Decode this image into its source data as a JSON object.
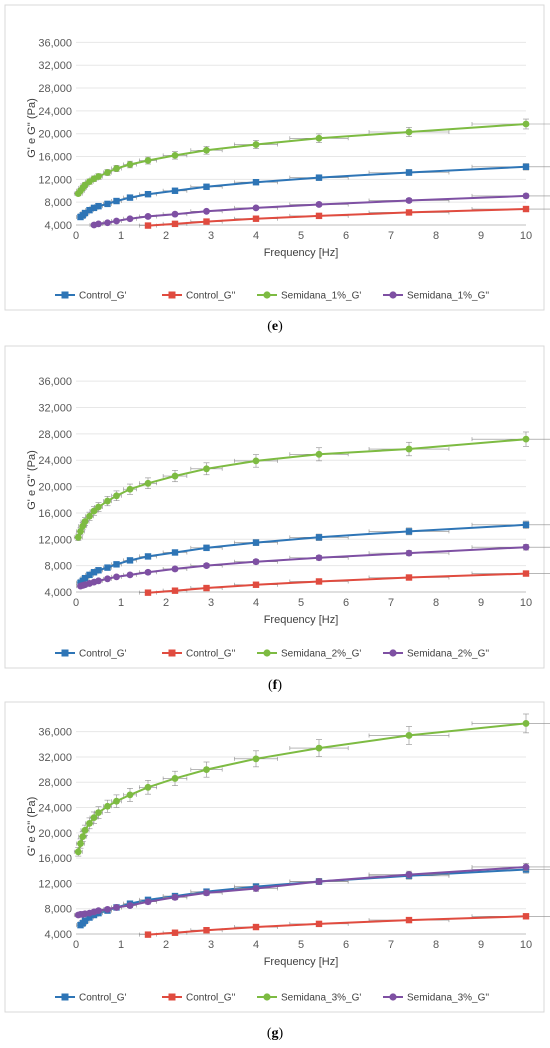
{
  "panels": [
    {
      "label": "(e)",
      "chart_data": {
        "type": "line",
        "xlabel": "Frequency [Hz]",
        "ylabel": "G' e G'' (Pa)",
        "xlim": [
          0,
          10
        ],
        "ylim": [
          4000,
          38000
        ],
        "x_ticks": [
          "0",
          "1",
          "2",
          "3",
          "4",
          "5",
          "6",
          "7",
          "8",
          "9",
          "10"
        ],
        "y_ticks": [
          "4,000",
          "8,000",
          "12,000",
          "16,000",
          "20,000",
          "24,000",
          "28,000",
          "32,000",
          "36,000"
        ],
        "legend_position": "bottom",
        "series": [
          {
            "name": "Control_G'",
            "color": "#2e75b6",
            "marker": "square",
            "x": [
              0.1,
              0.15,
              0.2,
              0.3,
              0.4,
              0.5,
              0.7,
              0.9,
              1.2,
              1.6,
              2.2,
              2.9,
              4,
              5.4,
              7.4,
              10
            ],
            "y": [
              5400,
              5700,
              6100,
              6600,
              7000,
              7300,
              7700,
              8200,
              8800,
              9400,
              10000,
              10700,
              11500,
              12300,
              13200,
              14200
            ]
          },
          {
            "name": "Control_G''",
            "color": "#e04b3f",
            "marker": "square",
            "x": [
              1.6,
              2.2,
              2.9,
              4,
              5.4,
              7.4,
              10
            ],
            "y": [
              3900,
              4200,
              4600,
              5100,
              5600,
              6200,
              6800
            ]
          },
          {
            "name": "Semidana_1%_G'",
            "color": "#7dbb42",
            "marker": "circle",
            "x": [
              0.05,
              0.1,
              0.15,
              0.2,
              0.3,
              0.4,
              0.5,
              0.7,
              0.9,
              1.2,
              1.6,
              2.2,
              2.9,
              4,
              5.4,
              7.4,
              10
            ],
            "y": [
              9500,
              10000,
              10500,
              11000,
              11600,
              12100,
              12500,
              13200,
              13900,
              14600,
              15300,
              16200,
              17100,
              18100,
              19200,
              20300,
              21700
            ]
          },
          {
            "name": "Semidana_1%_G''",
            "color": "#7e50a3",
            "marker": "circle",
            "x": [
              0.4,
              0.5,
              0.7,
              0.9,
              1.2,
              1.6,
              2.2,
              2.9,
              4,
              5.4,
              7.4,
              10
            ],
            "y": [
              4000,
              4200,
              4400,
              4700,
              5100,
              5500,
              5900,
              6400,
              7000,
              7600,
              8300,
              9100
            ]
          }
        ]
      }
    },
    {
      "label": "(f)",
      "chart_data": {
        "type": "line",
        "xlabel": "Frequency [Hz]",
        "ylabel": "G' e G'' (Pa)",
        "xlim": [
          0,
          10
        ],
        "ylim": [
          4000,
          38000
        ],
        "x_ticks": [
          "0",
          "1",
          "2",
          "3",
          "4",
          "5",
          "6",
          "7",
          "8",
          "9",
          "10"
        ],
        "y_ticks": [
          "4,000",
          "8,000",
          "12,000",
          "16,000",
          "20,000",
          "24,000",
          "28,000",
          "32,000",
          "36,000"
        ],
        "legend_position": "bottom",
        "series": [
          {
            "name": "Control_G'",
            "color": "#2e75b6",
            "marker": "square",
            "x": [
              0.1,
              0.15,
              0.2,
              0.3,
              0.4,
              0.5,
              0.7,
              0.9,
              1.2,
              1.6,
              2.2,
              2.9,
              4,
              5.4,
              7.4,
              10
            ],
            "y": [
              5400,
              5700,
              6100,
              6600,
              7000,
              7300,
              7700,
              8200,
              8800,
              9400,
              10000,
              10700,
              11500,
              12300,
              13200,
              14200
            ]
          },
          {
            "name": "Control_G''",
            "color": "#e04b3f",
            "marker": "square",
            "x": [
              1.6,
              2.2,
              2.9,
              4,
              5.4,
              7.4,
              10
            ],
            "y": [
              3900,
              4200,
              4600,
              5100,
              5600,
              6200,
              6800
            ]
          },
          {
            "name": "Semidana_2%_G'",
            "color": "#7dbb42",
            "marker": "circle",
            "x": [
              0.05,
              0.1,
              0.15,
              0.2,
              0.3,
              0.4,
              0.5,
              0.7,
              0.9,
              1.2,
              1.6,
              2.2,
              2.9,
              4,
              5.4,
              7.4,
              10
            ],
            "y": [
              12300,
              13200,
              14000,
              14700,
              15500,
              16300,
              16900,
              17800,
              18600,
              19600,
              20500,
              21600,
              22700,
              23900,
              24900,
              25700,
              27200
            ]
          },
          {
            "name": "Semidana_2%_G''",
            "color": "#7e50a3",
            "marker": "circle",
            "x": [
              0.1,
              0.15,
              0.2,
              0.3,
              0.4,
              0.5,
              0.7,
              0.9,
              1.2,
              1.6,
              2.2,
              2.9,
              4,
              5.4,
              7.4,
              10
            ],
            "y": [
              4900,
              5000,
              5100,
              5300,
              5500,
              5700,
              6000,
              6300,
              6600,
              7000,
              7500,
              8000,
              8600,
              9200,
              9900,
              10800
            ]
          }
        ]
      }
    },
    {
      "label": "(g)",
      "chart_data": {
        "type": "line",
        "xlabel": "Frequency [Hz]",
        "ylabel": "G' e G'' (Pa)",
        "xlim": [
          0,
          10
        ],
        "ylim": [
          4000,
          38000
        ],
        "x_ticks": [
          "0",
          "1",
          "2",
          "3",
          "4",
          "5",
          "6",
          "7",
          "8",
          "9",
          "10"
        ],
        "y_ticks": [
          "4,000",
          "8,000",
          "12,000",
          "16,000",
          "20,000",
          "24,000",
          "28,000",
          "32,000",
          "36,000"
        ],
        "legend_position": "bottom",
        "series": [
          {
            "name": "Control_G'",
            "color": "#2e75b6",
            "marker": "square",
            "x": [
              0.1,
              0.15,
              0.2,
              0.3,
              0.4,
              0.5,
              0.7,
              0.9,
              1.2,
              1.6,
              2.2,
              2.9,
              4,
              5.4,
              7.4,
              10
            ],
            "y": [
              5400,
              5700,
              6100,
              6600,
              7000,
              7300,
              7700,
              8200,
              8800,
              9400,
              10000,
              10700,
              11500,
              12300,
              13200,
              14200
            ]
          },
          {
            "name": "Control_G''",
            "color": "#e04b3f",
            "marker": "square",
            "x": [
              1.6,
              2.2,
              2.9,
              4,
              5.4,
              7.4,
              10
            ],
            "y": [
              3900,
              4200,
              4600,
              5100,
              5600,
              6200,
              6800
            ]
          },
          {
            "name": "Semidana_3%_G'",
            "color": "#7dbb42",
            "marker": "circle",
            "x": [
              0.05,
              0.1,
              0.15,
              0.2,
              0.3,
              0.4,
              0.5,
              0.7,
              0.9,
              1.2,
              1.6,
              2.2,
              2.9,
              4,
              5.4,
              7.4,
              10
            ],
            "y": [
              17000,
              18300,
              19400,
              20400,
              21500,
              22400,
              23200,
              24200,
              25000,
              26000,
              27200,
              28600,
              30000,
              31700,
              33400,
              35400,
              37300
            ]
          },
          {
            "name": "Semidana_3%_G''",
            "color": "#7e50a3",
            "marker": "circle",
            "x": [
              0.05,
              0.1,
              0.15,
              0.2,
              0.3,
              0.4,
              0.5,
              0.7,
              0.9,
              1.2,
              1.6,
              2.2,
              2.9,
              4,
              5.4,
              7.4,
              10
            ],
            "y": [
              7000,
              7100,
              7100,
              7200,
              7300,
              7500,
              7700,
              7900,
              8200,
              8500,
              9100,
              9800,
              10500,
              11200,
              12300,
              13400,
              14600
            ]
          }
        ]
      }
    }
  ]
}
